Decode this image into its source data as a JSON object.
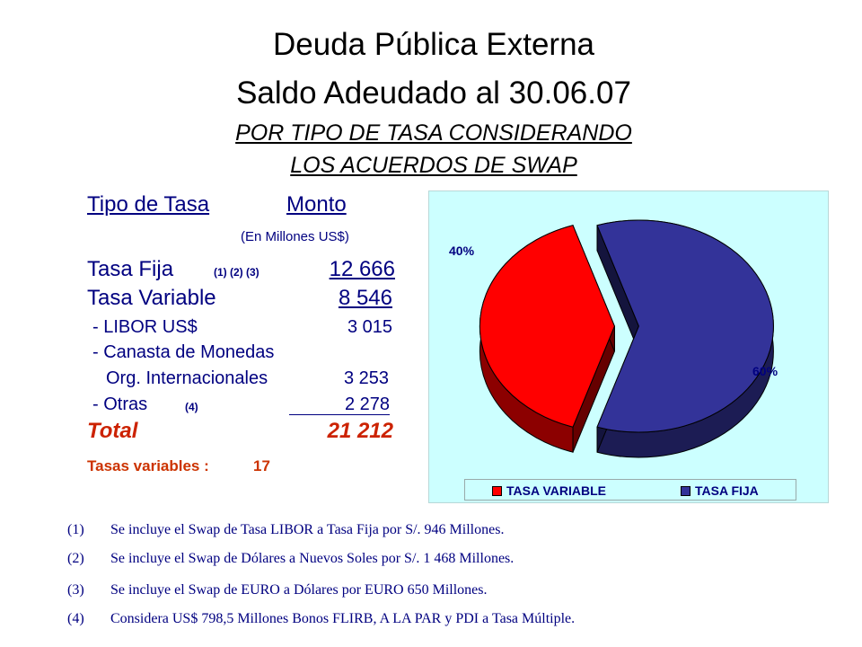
{
  "title": "Deuda Pública Externa",
  "subtitle": "Saldo Adeudado al 30.06.07",
  "heading_line1": "POR TIPO DE TASA CONSIDERANDO",
  "heading_line2": "LOS ACUERDOS DE SWAP",
  "table": {
    "col1": "Tipo de Tasa",
    "col2": "Monto",
    "units": "(En Millones US$)",
    "rows": [
      {
        "label": "Tasa Fija",
        "note": "(1) (2) (3)",
        "value": "12 666"
      },
      {
        "label": "Tasa Variable",
        "value": "8 546"
      },
      {
        "label": "- LIBOR US$",
        "value": "3 015"
      },
      {
        "label": "- Canasta de Monedas"
      },
      {
        "label": "Org. Internacionales",
        "value": "3 253"
      },
      {
        "label": "- Otras",
        "note": "(4)",
        "value": "2 278"
      }
    ],
    "total_label": "Total",
    "total_value": "21 212",
    "variable_rates_label": "Tasas variables :",
    "variable_rates_value": "17"
  },
  "chart_data": {
    "type": "pie",
    "labels": [
      "TASA VARIABLE",
      "TASA FIJA"
    ],
    "values": [
      40,
      60
    ],
    "data_labels": [
      "40%",
      "60%"
    ],
    "colors": [
      "#ff0000",
      "#333399"
    ],
    "legend_position": "bottom",
    "background": "#ccffff",
    "style": "3d-exploded"
  },
  "footnotes": [
    {
      "key": "(1)",
      "text": "Se incluye el Swap de Tasa LIBOR a Tasa Fija por S/. 946 Millones."
    },
    {
      "key": "(2)",
      "text": "Se incluye el Swap de Dólares a Nuevos Soles por S/. 1 468 Millones."
    },
    {
      "key": "(3)",
      "text": "Se incluye el Swap de EURO a Dólares por EURO 650 Millones."
    },
    {
      "key": "(4)",
      "text": "Considera US$ 798,5 Millones Bonos FLIRB, A LA PAR y PDI a Tasa Múltiple."
    }
  ]
}
